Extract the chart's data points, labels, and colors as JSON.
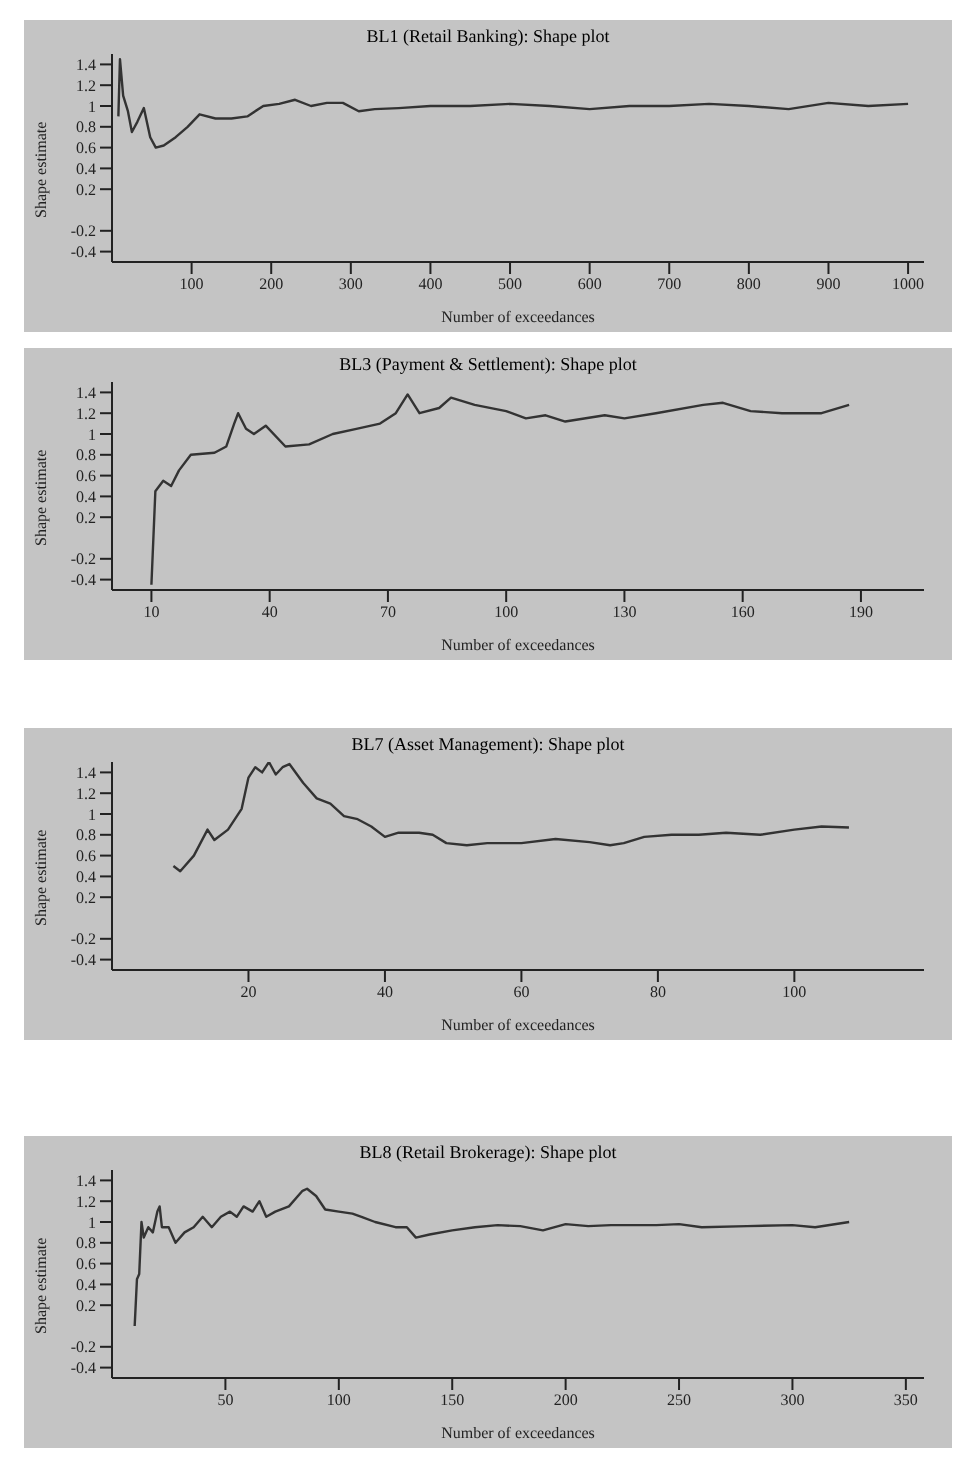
{
  "chart_data": [
    {
      "type": "line",
      "title": "BL1 (Retail Banking): Shape plot",
      "xlabel": "Number of exceedances",
      "ylabel": "Shape estimate",
      "color": "#333333",
      "marker": "none",
      "grid": false,
      "x": [
        8,
        10,
        14,
        20,
        25,
        32,
        40,
        48,
        55,
        65,
        80,
        95,
        110,
        130,
        150,
        170,
        190,
        210,
        230,
        250,
        270,
        290,
        310,
        330,
        360,
        400,
        450,
        500,
        550,
        600,
        650,
        700,
        750,
        800,
        850,
        900,
        950,
        1000
      ],
      "values": [
        0.9,
        1.45,
        1.1,
        0.95,
        0.75,
        0.85,
        0.98,
        0.7,
        0.6,
        0.62,
        0.7,
        0.8,
        0.92,
        0.88,
        0.88,
        0.9,
        1.0,
        1.02,
        1.06,
        1.0,
        1.03,
        1.03,
        0.95,
        0.97,
        0.98,
        1.0,
        1.0,
        1.02,
        1.0,
        0.97,
        1.0,
        1.0,
        1.02,
        1.0,
        0.97,
        1.03,
        1.0,
        1.02
      ],
      "xlim": [
        0,
        1020
      ],
      "xticks": [
        100,
        200,
        300,
        400,
        500,
        600,
        700,
        800,
        900,
        1000
      ],
      "ylim": [
        -0.5,
        1.5
      ],
      "yticks": [
        -0.4,
        -0.2,
        0.2,
        0.4,
        0.6,
        0.8,
        1,
        1.2,
        1.4
      ]
    },
    {
      "type": "line",
      "title": "BL3 (Payment & Settlement): Shape plot",
      "xlabel": "Number of exceedances",
      "ylabel": "Shape estimate",
      "color": "#333333",
      "marker": "none",
      "grid": false,
      "x": [
        10,
        11,
        13,
        15,
        17,
        20,
        26,
        29,
        31,
        32,
        34,
        36,
        39,
        44,
        50,
        56,
        62,
        68,
        72,
        75,
        78,
        83,
        86,
        92,
        100,
        105,
        110,
        115,
        125,
        130,
        138,
        150,
        155,
        162,
        170,
        180,
        187
      ],
      "values": [
        -0.45,
        0.45,
        0.55,
        0.5,
        0.65,
        0.8,
        0.82,
        0.88,
        1.1,
        1.2,
        1.05,
        1.0,
        1.08,
        0.88,
        0.9,
        1.0,
        1.05,
        1.1,
        1.2,
        1.38,
        1.2,
        1.25,
        1.35,
        1.28,
        1.22,
        1.15,
        1.18,
        1.12,
        1.18,
        1.15,
        1.2,
        1.28,
        1.3,
        1.22,
        1.2,
        1.2,
        1.28
      ],
      "xlim": [
        0,
        206
      ],
      "xticks": [
        10,
        40,
        70,
        100,
        130,
        160,
        190
      ],
      "ylim": [
        -0.5,
        1.5
      ],
      "yticks": [
        -0.4,
        -0.2,
        0.2,
        0.4,
        0.6,
        0.8,
        1,
        1.2,
        1.4
      ]
    },
    {
      "type": "line",
      "title": "BL7 (Asset Management): Shape plot",
      "xlabel": "Number of exceedances",
      "ylabel": "Shape estimate",
      "color": "#333333",
      "marker": "none",
      "grid": false,
      "x": [
        9,
        10,
        12,
        14,
        15,
        17,
        19,
        20,
        21,
        22,
        23,
        24,
        25,
        26,
        28,
        30,
        32,
        34,
        36,
        38,
        40,
        42,
        45,
        47,
        49,
        52,
        55,
        60,
        65,
        70,
        73,
        75,
        78,
        82,
        86,
        90,
        95,
        100,
        104,
        108
      ],
      "values": [
        0.5,
        0.45,
        0.6,
        0.85,
        0.75,
        0.85,
        1.05,
        1.35,
        1.45,
        1.4,
        1.5,
        1.38,
        1.45,
        1.48,
        1.3,
        1.15,
        1.1,
        0.98,
        0.95,
        0.88,
        0.78,
        0.82,
        0.82,
        0.8,
        0.72,
        0.7,
        0.72,
        0.72,
        0.76,
        0.73,
        0.7,
        0.72,
        0.78,
        0.8,
        0.8,
        0.82,
        0.8,
        0.85,
        0.88,
        0.87
      ],
      "xlim": [
        0,
        119
      ],
      "xticks": [
        20,
        40,
        60,
        80,
        100
      ],
      "ylim": [
        -0.5,
        1.5
      ],
      "yticks": [
        -0.4,
        -0.2,
        0.2,
        0.4,
        0.6,
        0.8,
        1,
        1.2,
        1.4
      ]
    },
    {
      "type": "line",
      "title": "BL8 (Retail Brokerage): Shape plot",
      "xlabel": "Number of exceedances",
      "ylabel": "Shape estimate",
      "color": "#333333",
      "marker": "none",
      "grid": false,
      "x": [
        10,
        11,
        12,
        13,
        14,
        16,
        18,
        20,
        21,
        22,
        25,
        28,
        32,
        36,
        40,
        44,
        48,
        52,
        55,
        58,
        62,
        65,
        68,
        72,
        78,
        84,
        86,
        90,
        94,
        100,
        106,
        110,
        116,
        125,
        130,
        134,
        140,
        150,
        160,
        170,
        180,
        190,
        200,
        210,
        220,
        240,
        250,
        260,
        280,
        300,
        310,
        325
      ],
      "values": [
        0,
        0.45,
        0.5,
        1.0,
        0.85,
        0.95,
        0.9,
        1.1,
        1.15,
        0.95,
        0.95,
        0.8,
        0.9,
        0.95,
        1.05,
        0.95,
        1.05,
        1.1,
        1.05,
        1.15,
        1.1,
        1.2,
        1.05,
        1.1,
        1.15,
        1.3,
        1.32,
        1.25,
        1.12,
        1.1,
        1.08,
        1.05,
        1.0,
        0.95,
        0.95,
        0.85,
        0.88,
        0.92,
        0.95,
        0.97,
        0.96,
        0.92,
        0.98,
        0.96,
        0.97,
        0.97,
        0.98,
        0.95,
        0.96,
        0.97,
        0.95,
        1.0
      ],
      "xlim": [
        0,
        358
      ],
      "xticks": [
        50,
        100,
        150,
        200,
        250,
        300,
        350
      ],
      "ylim": [
        -0.5,
        1.5
      ],
      "yticks": [
        -0.4,
        -0.2,
        0.2,
        0.4,
        0.6,
        0.8,
        1,
        1.2,
        1.4
      ]
    }
  ]
}
